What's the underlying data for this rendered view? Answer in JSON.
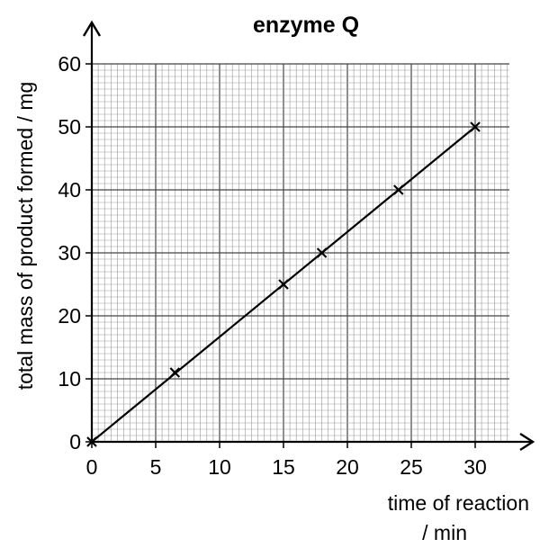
{
  "chart_data": {
    "type": "scatter",
    "title": "enzyme Q",
    "xlabel": "time of reaction",
    "xlabel_unit": "/ min",
    "ylabel": "total mass of product formed / mg",
    "xlim": [
      0,
      30
    ],
    "ylim": [
      0,
      60
    ],
    "x_ticks": [
      "0",
      "5",
      "10",
      "15",
      "20",
      "25",
      "30"
    ],
    "y_ticks": [
      "0",
      "10",
      "20",
      "30",
      "40",
      "50",
      "60"
    ],
    "grid": true,
    "marker": "cross",
    "points": [
      {
        "x": 0,
        "y": 0
      },
      {
        "x": 6.5,
        "y": 11
      },
      {
        "x": 15,
        "y": 25
      },
      {
        "x": 18,
        "y": 30
      },
      {
        "x": 24,
        "y": 40
      },
      {
        "x": 30,
        "y": 50
      }
    ],
    "line": {
      "x": [
        0,
        30
      ],
      "y": [
        0,
        50
      ]
    }
  }
}
